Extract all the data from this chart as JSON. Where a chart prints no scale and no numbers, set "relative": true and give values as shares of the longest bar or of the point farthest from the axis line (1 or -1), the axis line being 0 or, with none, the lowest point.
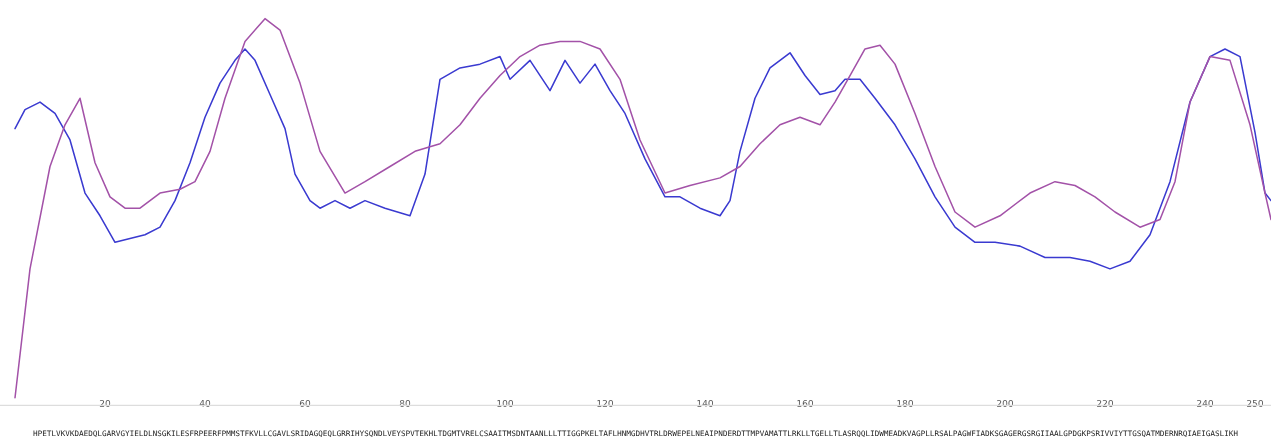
{
  "chart_data": {
    "type": "line",
    "relative": true,
    "tick_labels": "x",
    "xlim": [
      -1,
      253.2
    ],
    "xticks": [
      20,
      40,
      60,
      80,
      100,
      120,
      140,
      160,
      180,
      200,
      220,
      240,
      250
    ],
    "series": [
      {
        "color": "#3a3ad0",
        "x": [
          2,
          4,
          7,
          10,
          13,
          16,
          19,
          22,
          25,
          28,
          31,
          34,
          37,
          40,
          43,
          46,
          48,
          50,
          53,
          56,
          58,
          61,
          63,
          66,
          69,
          72,
          76,
          81,
          84,
          87,
          91,
          95,
          99,
          101,
          105,
          109,
          112,
          115,
          118,
          121,
          124,
          128,
          132,
          135,
          139,
          143,
          145,
          147,
          150,
          153,
          157,
          160,
          163,
          166,
          168,
          171,
          174,
          178,
          182,
          186,
          190,
          194,
          198,
          203,
          208,
          213,
          217,
          221,
          225,
          229,
          233,
          237,
          241,
          244,
          247,
          250,
          252,
          253.2
        ],
        "values": [
          0.71,
          0.76,
          0.78,
          0.75,
          0.68,
          0.54,
          0.48,
          0.41,
          0.42,
          0.43,
          0.45,
          0.52,
          0.62,
          0.74,
          0.83,
          0.89,
          0.92,
          0.89,
          0.8,
          0.71,
          0.59,
          0.52,
          0.5,
          0.52,
          0.5,
          0.52,
          0.5,
          0.48,
          0.59,
          0.84,
          0.87,
          0.88,
          0.9,
          0.84,
          0.89,
          0.81,
          0.89,
          0.83,
          0.88,
          0.81,
          0.75,
          0.63,
          0.53,
          0.53,
          0.5,
          0.48,
          0.52,
          0.65,
          0.79,
          0.87,
          0.91,
          0.85,
          0.8,
          0.81,
          0.84,
          0.84,
          0.79,
          0.72,
          0.63,
          0.53,
          0.45,
          0.41,
          0.41,
          0.4,
          0.37,
          0.37,
          0.36,
          0.34,
          0.36,
          0.43,
          0.57,
          0.78,
          0.9,
          0.92,
          0.9,
          0.7,
          0.54,
          0.52
        ]
      },
      {
        "color": "#a352a8",
        "x": [
          2,
          5,
          9,
          12,
          15,
          18,
          21,
          24,
          27,
          31,
          35,
          38,
          41,
          44,
          48,
          52,
          55,
          59,
          63,
          68,
          72,
          77,
          82,
          87,
          91,
          95,
          99,
          103,
          107,
          111,
          115,
          119,
          123,
          127,
          132,
          137,
          143,
          147,
          151,
          155,
          159,
          163,
          166,
          169,
          172,
          175,
          178,
          182,
          186,
          190,
          194,
          199,
          205,
          210,
          214,
          218,
          222,
          227,
          231,
          234,
          237,
          241,
          245,
          249,
          252,
          253.2
        ],
        "values": [
          0,
          0.34,
          0.61,
          0.72,
          0.79,
          0.62,
          0.53,
          0.5,
          0.5,
          0.54,
          0.55,
          0.57,
          0.65,
          0.79,
          0.94,
          1,
          0.97,
          0.83,
          0.65,
          0.54,
          0.57,
          0.61,
          0.65,
          0.67,
          0.72,
          0.79,
          0.85,
          0.9,
          0.93,
          0.94,
          0.94,
          0.92,
          0.84,
          0.68,
          0.54,
          0.56,
          0.58,
          0.61,
          0.67,
          0.72,
          0.74,
          0.72,
          0.78,
          0.85,
          0.92,
          0.93,
          0.88,
          0.75,
          0.61,
          0.49,
          0.45,
          0.48,
          0.54,
          0.57,
          0.56,
          0.53,
          0.49,
          0.45,
          0.47,
          0.57,
          0.78,
          0.9,
          0.89,
          0.72,
          0.54,
          0.47
        ]
      }
    ],
    "annotations": [
      "HPETLVKVKDAEDQLGARVGYIELDLNSGKILESFRPEERFPMMSTFKVLLCGAVLSRIDAGQEQLGRRIHYSQNDLVEYSPVTEKHLTDGMTVRELCSAAITMSDNTAANLLLTTIGGPKELTAFLHNMGDHVTRLDRWEPELNEAIPNDERDTTMPVAMATTLRKLLTGELLTLASRQQLIDWMEADKVAGPLLRSALPAGWFIADKSGAGERGSRGIIAALGPDGKPSRIVVIYTTGSQATMDERNRQIAEIGASLIKH"
    ]
  }
}
